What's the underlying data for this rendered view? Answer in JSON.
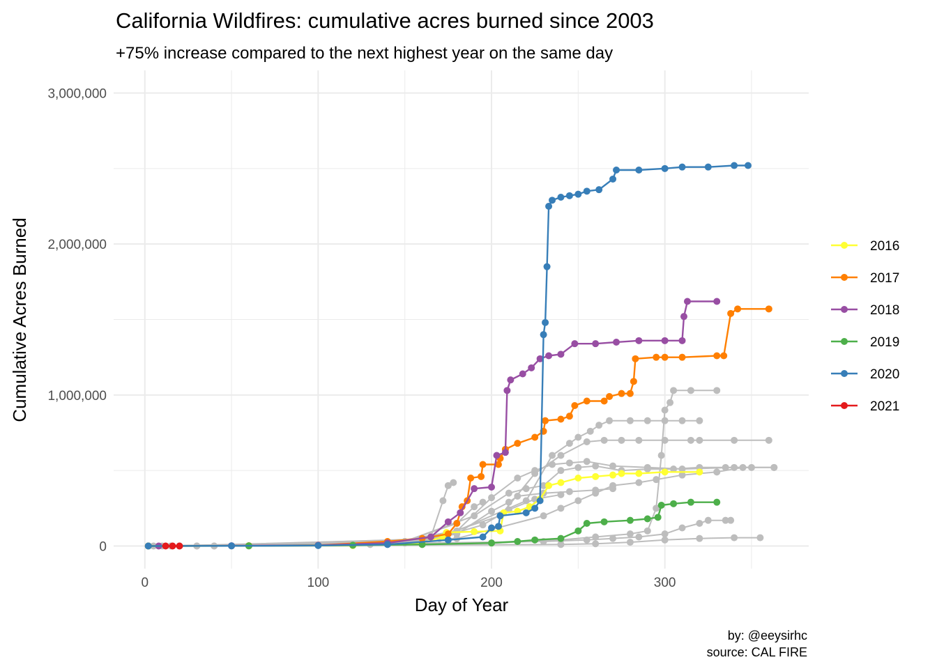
{
  "chart_data": {
    "type": "line",
    "title": "California Wildfires: cumulative acres burned since 2003",
    "subtitle": "+75% increase compared to the next highest year on the same day",
    "xlabel": "Day of Year",
    "ylabel": "Cumulative Acres Burned",
    "caption_lines": [
      "by: @eeysirhc",
      "source: CAL FIRE"
    ],
    "xlim": [
      -18,
      383
    ],
    "ylim": [
      -150000,
      3150000
    ],
    "x_ticks": [
      0,
      100,
      200,
      300
    ],
    "x_tick_labels": [
      "0",
      "100",
      "200",
      "300"
    ],
    "y_ticks": [
      0,
      1000000,
      2000000,
      3000000
    ],
    "y_tick_labels": [
      "0",
      "1,000,000",
      "2,000,000",
      "3,000,000"
    ],
    "grid": true,
    "legend_position": "right",
    "background_color": "#bdbdbd",
    "background_series": [
      {
        "points": [
          [
            2,
            0
          ],
          [
            60,
            2000
          ],
          [
            100,
            5000
          ],
          [
            140,
            20000
          ],
          [
            165,
            60000
          ],
          [
            172,
            300000
          ],
          [
            175,
            400000
          ],
          [
            178,
            420000
          ]
        ]
      },
      {
        "points": [
          [
            40,
            0
          ],
          [
            120,
            8000
          ],
          [
            150,
            30000
          ],
          [
            180,
            150000
          ],
          [
            190,
            260000
          ],
          [
            195,
            290000
          ]
        ]
      },
      {
        "points": [
          [
            60,
            0
          ],
          [
            130,
            10000
          ],
          [
            160,
            40000
          ],
          [
            180,
            90000
          ],
          [
            195,
            140000
          ],
          [
            210,
            240000
          ],
          [
            225,
            310000
          ],
          [
            240,
            340000
          ]
        ]
      },
      {
        "points": [
          [
            50,
            0
          ],
          [
            150,
            20000
          ],
          [
            180,
            80000
          ],
          [
            200,
            230000
          ],
          [
            210,
            290000
          ],
          [
            215,
            330000
          ],
          [
            230,
            350000
          ],
          [
            245,
            360000
          ],
          [
            260,
            370000
          ],
          [
            270,
            380000
          ]
        ]
      },
      {
        "points": [
          [
            20,
            0
          ],
          [
            140,
            20000
          ],
          [
            180,
            100000
          ],
          [
            200,
            320000
          ],
          [
            215,
            450000
          ],
          [
            225,
            500000
          ],
          [
            235,
            540000
          ],
          [
            245,
            550000
          ],
          [
            255,
            560000
          ],
          [
            270,
            530000
          ],
          [
            290,
            520000
          ],
          [
            310,
            510000
          ],
          [
            340,
            520000
          ],
          [
            350,
            520000
          ]
        ]
      },
      {
        "points": [
          [
            10,
            0
          ],
          [
            150,
            30000
          ],
          [
            190,
            200000
          ],
          [
            210,
            350000
          ],
          [
            220,
            380000
          ],
          [
            230,
            400000
          ],
          [
            240,
            500000
          ],
          [
            250,
            520000
          ],
          [
            260,
            530000
          ],
          [
            275,
            500000
          ],
          [
            290,
            510000
          ],
          [
            305,
            510000
          ],
          [
            320,
            520000
          ],
          [
            335,
            520000
          ],
          [
            363,
            520000
          ]
        ]
      },
      {
        "points": [
          [
            30,
            0
          ],
          [
            170,
            50000
          ],
          [
            220,
            300000
          ],
          [
            235,
            600000
          ],
          [
            245,
            680000
          ],
          [
            250,
            720000
          ],
          [
            257,
            760000
          ],
          [
            262,
            800000
          ],
          [
            268,
            830000
          ],
          [
            280,
            830000
          ],
          [
            290,
            830000
          ],
          [
            300,
            830000
          ],
          [
            310,
            830000
          ],
          [
            320,
            830000
          ]
        ]
      },
      {
        "points": [
          [
            5,
            0
          ],
          [
            160,
            30000
          ],
          [
            205,
            200000
          ],
          [
            225,
            480000
          ],
          [
            240,
            600000
          ],
          [
            255,
            690000
          ],
          [
            265,
            700000
          ],
          [
            275,
            700000
          ],
          [
            285,
            700000
          ],
          [
            300,
            700000
          ],
          [
            315,
            700000
          ],
          [
            320,
            700000
          ],
          [
            340,
            700000
          ],
          [
            360,
            700000
          ]
        ]
      },
      {
        "points": [
          [
            15,
            0
          ],
          [
            180,
            50000
          ],
          [
            230,
            200000
          ],
          [
            240,
            250000
          ],
          [
            250,
            300000
          ],
          [
            260,
            350000
          ],
          [
            270,
            400000
          ],
          [
            285,
            420000
          ],
          [
            295,
            440000
          ],
          [
            310,
            470000
          ],
          [
            330,
            490000
          ],
          [
            345,
            520000
          ],
          [
            363,
            520000
          ]
        ]
      },
      {
        "points": [
          [
            20,
            0
          ],
          [
            200,
            20000
          ],
          [
            240,
            40000
          ],
          [
            260,
            60000
          ],
          [
            280,
            80000
          ],
          [
            290,
            100000
          ],
          [
            295,
            250000
          ],
          [
            298,
            600000
          ],
          [
            300,
            900000
          ],
          [
            303,
            950000
          ],
          [
            305,
            1030000
          ],
          [
            315,
            1030000
          ],
          [
            330,
            1030000
          ]
        ]
      },
      {
        "points": [
          [
            30,
            0
          ],
          [
            230,
            30000
          ],
          [
            255,
            40000
          ],
          [
            270,
            50000
          ],
          [
            285,
            60000
          ],
          [
            300,
            80000
          ],
          [
            310,
            120000
          ],
          [
            320,
            150000
          ],
          [
            325,
            170000
          ],
          [
            335,
            170000
          ],
          [
            338,
            170000
          ]
        ]
      },
      {
        "points": [
          [
            40,
            0
          ],
          [
            240,
            10000
          ],
          [
            260,
            15000
          ],
          [
            280,
            25000
          ],
          [
            300,
            40000
          ],
          [
            320,
            50000
          ],
          [
            340,
            55000
          ],
          [
            355,
            55000
          ]
        ]
      }
    ],
    "series": [
      {
        "name": "2016",
        "color": "#ffff33",
        "points": [
          [
            2,
            0
          ],
          [
            120,
            3000
          ],
          [
            160,
            20000
          ],
          [
            172,
            60000
          ],
          [
            174,
            90000
          ],
          [
            190,
            95000
          ],
          [
            205,
            100000
          ],
          [
            207,
            220000
          ],
          [
            215,
            230000
          ],
          [
            222,
            260000
          ],
          [
            228,
            310000
          ],
          [
            233,
            400000
          ],
          [
            240,
            420000
          ],
          [
            250,
            450000
          ],
          [
            260,
            460000
          ],
          [
            270,
            470000
          ],
          [
            275,
            480000
          ],
          [
            285,
            480000
          ],
          [
            300,
            490000
          ],
          [
            320,
            490000
          ]
        ]
      },
      {
        "name": "2017",
        "color": "#ff7f00",
        "points": [
          [
            2,
            0
          ],
          [
            60,
            2000
          ],
          [
            100,
            5000
          ],
          [
            140,
            30000
          ],
          [
            160,
            50000
          ],
          [
            175,
            80000
          ],
          [
            180,
            150000
          ],
          [
            183,
            260000
          ],
          [
            186,
            300000
          ],
          [
            188,
            450000
          ],
          [
            194,
            460000
          ],
          [
            195,
            540000
          ],
          [
            204,
            540000
          ],
          [
            205,
            580000
          ],
          [
            208,
            640000
          ],
          [
            215,
            680000
          ],
          [
            225,
            720000
          ],
          [
            230,
            760000
          ],
          [
            231,
            830000
          ],
          [
            240,
            840000
          ],
          [
            245,
            860000
          ],
          [
            248,
            930000
          ],
          [
            255,
            960000
          ],
          [
            265,
            960000
          ],
          [
            268,
            990000
          ],
          [
            275,
            1010000
          ],
          [
            280,
            1010000
          ],
          [
            282,
            1090000
          ],
          [
            283,
            1240000
          ],
          [
            295,
            1250000
          ],
          [
            300,
            1250000
          ],
          [
            310,
            1250000
          ],
          [
            330,
            1260000
          ],
          [
            334,
            1260000
          ],
          [
            338,
            1540000
          ],
          [
            342,
            1570000
          ],
          [
            360,
            1570000
          ]
        ]
      },
      {
        "name": "2018",
        "color": "#984ea3",
        "points": [
          [
            8,
            0
          ],
          [
            50,
            2000
          ],
          [
            100,
            5000
          ],
          [
            140,
            20000
          ],
          [
            165,
            60000
          ],
          [
            175,
            160000
          ],
          [
            182,
            220000
          ],
          [
            190,
            380000
          ],
          [
            200,
            390000
          ],
          [
            203,
            600000
          ],
          [
            208,
            620000
          ],
          [
            209,
            1030000
          ],
          [
            211,
            1100000
          ],
          [
            218,
            1140000
          ],
          [
            223,
            1180000
          ],
          [
            228,
            1240000
          ],
          [
            233,
            1260000
          ],
          [
            240,
            1270000
          ],
          [
            248,
            1340000
          ],
          [
            260,
            1340000
          ],
          [
            272,
            1350000
          ],
          [
            285,
            1360000
          ],
          [
            300,
            1360000
          ],
          [
            310,
            1360000
          ],
          [
            311,
            1520000
          ],
          [
            313,
            1620000
          ],
          [
            330,
            1620000
          ]
        ]
      },
      {
        "name": "2019",
        "color": "#4daf4a",
        "points": [
          [
            2,
            0
          ],
          [
            60,
            1000
          ],
          [
            120,
            5000
          ],
          [
            160,
            10000
          ],
          [
            200,
            20000
          ],
          [
            215,
            30000
          ],
          [
            225,
            40000
          ],
          [
            240,
            50000
          ],
          [
            250,
            100000
          ],
          [
            255,
            150000
          ],
          [
            265,
            160000
          ],
          [
            280,
            170000
          ],
          [
            290,
            180000
          ],
          [
            296,
            190000
          ],
          [
            298,
            270000
          ],
          [
            305,
            280000
          ],
          [
            315,
            290000
          ],
          [
            330,
            290000
          ]
        ]
      },
      {
        "name": "2020",
        "color": "#377eb8",
        "points": [
          [
            2,
            0
          ],
          [
            50,
            1000
          ],
          [
            100,
            3000
          ],
          [
            140,
            10000
          ],
          [
            175,
            40000
          ],
          [
            195,
            60000
          ],
          [
            200,
            120000
          ],
          [
            204,
            130000
          ],
          [
            205,
            200000
          ],
          [
            220,
            220000
          ],
          [
            225,
            250000
          ],
          [
            228,
            300000
          ],
          [
            230,
            1400000
          ],
          [
            231,
            1480000
          ],
          [
            232,
            1850000
          ],
          [
            233,
            2250000
          ],
          [
            235,
            2290000
          ],
          [
            240,
            2310000
          ],
          [
            245,
            2320000
          ],
          [
            250,
            2330000
          ],
          [
            255,
            2350000
          ],
          [
            262,
            2360000
          ],
          [
            270,
            2430000
          ],
          [
            272,
            2490000
          ],
          [
            285,
            2490000
          ],
          [
            300,
            2500000
          ],
          [
            310,
            2510000
          ],
          [
            325,
            2510000
          ],
          [
            340,
            2520000
          ],
          [
            348,
            2520000
          ]
        ]
      },
      {
        "name": "2021",
        "color": "#e41a1c",
        "points": [
          [
            12,
            0
          ],
          [
            16,
            0
          ],
          [
            20,
            0
          ]
        ]
      }
    ]
  }
}
